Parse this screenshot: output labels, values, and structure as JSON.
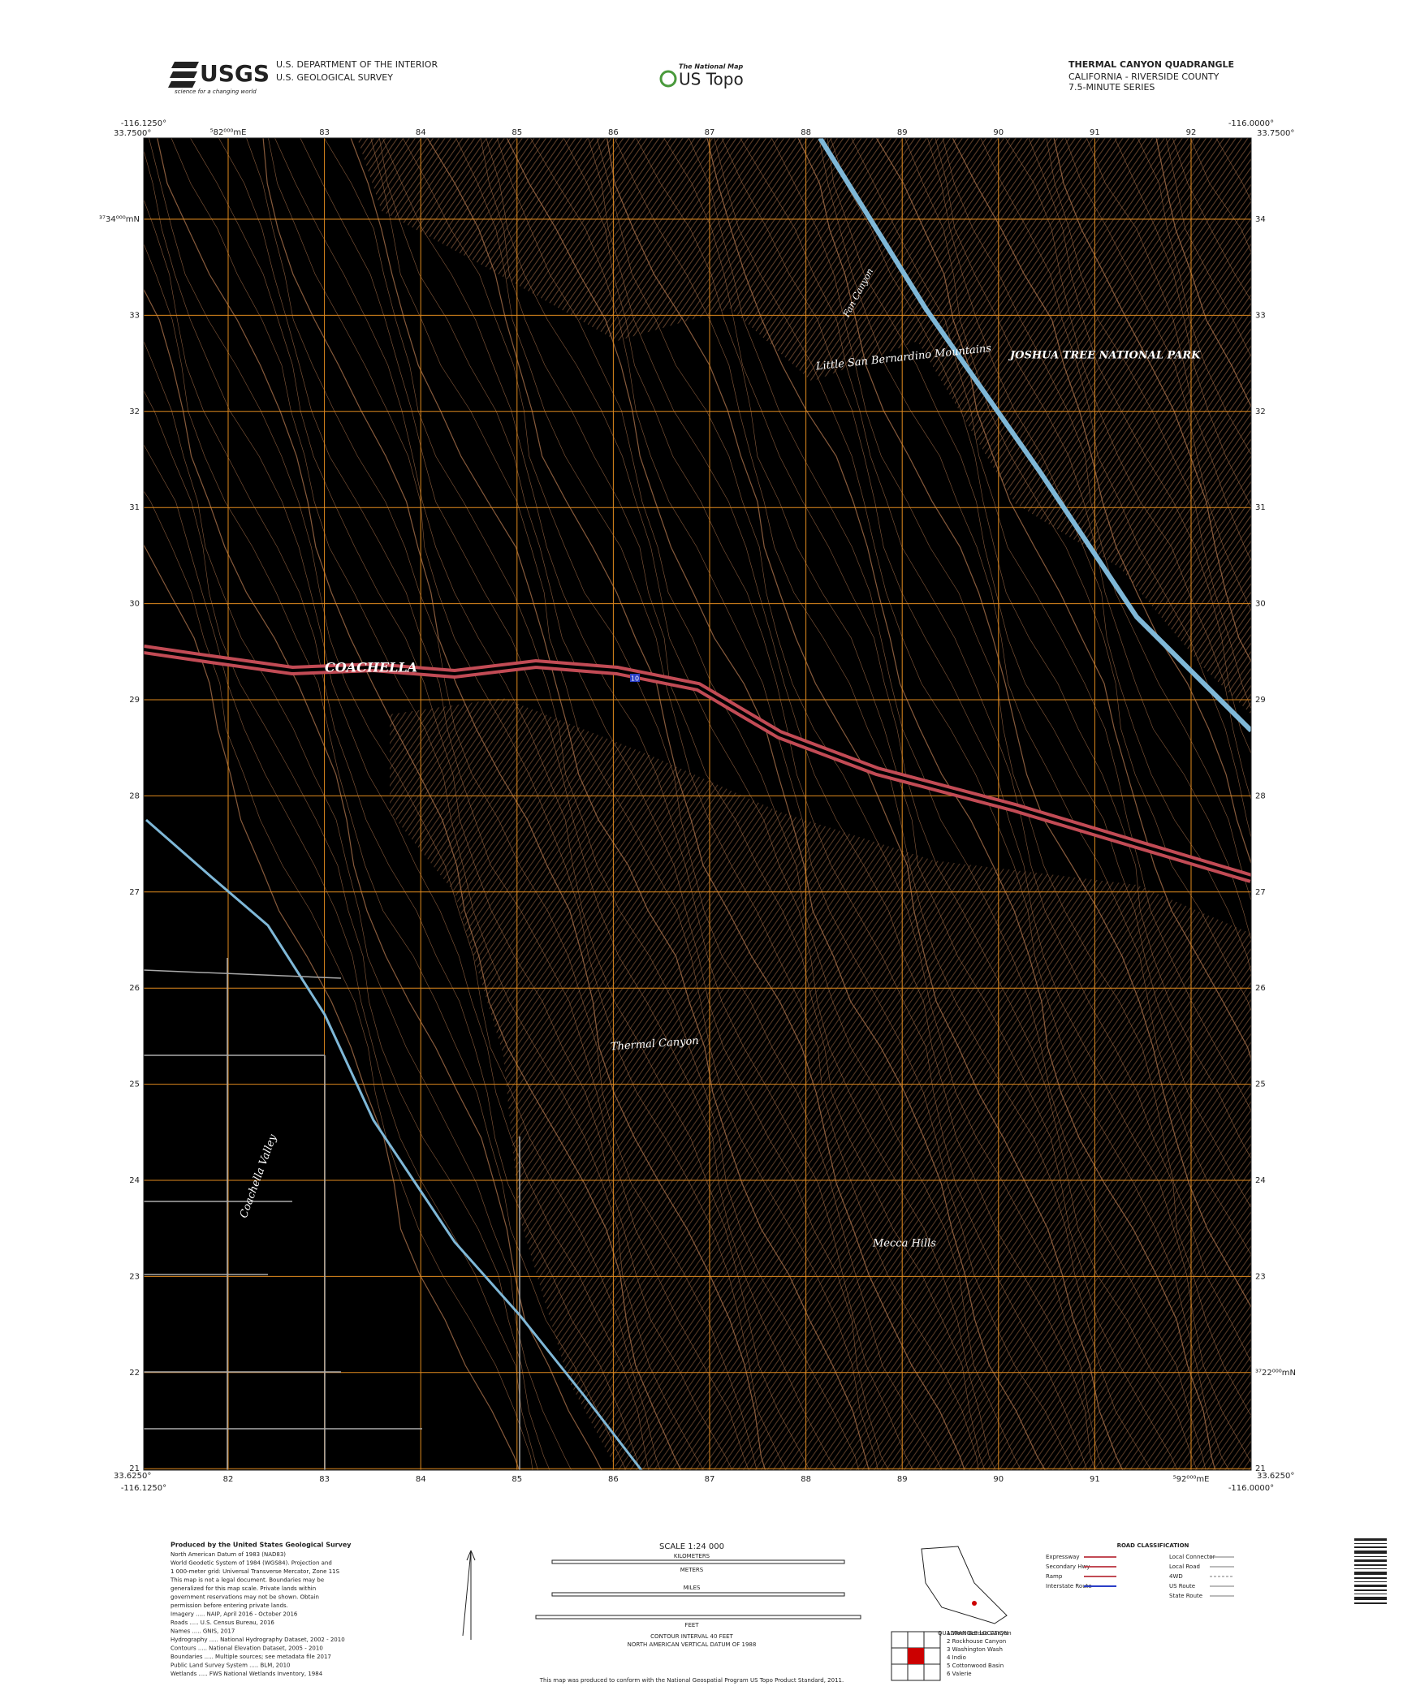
{
  "header": {
    "agency_logo": "USGS",
    "agency_tagline": "science for a changing world",
    "department": "U.S. DEPARTMENT OF THE INTERIOR",
    "survey": "U.S. GEOLOGICAL SURVEY",
    "product_tag": "The National Map",
    "product": "US Topo",
    "title": "THERMAL CANYON QUADRANGLE",
    "state_county": "CALIFORNIA - RIVERSIDE COUNTY",
    "series": "7.5-MINUTE SERIES"
  },
  "corners": {
    "top_left_lon": "-116.1250°",
    "top_left_lat": "33.7500°",
    "top_right_lon": "-116.0000°",
    "top_right_lat": "33.7500°",
    "bottom_left_lat": "33.6250°",
    "bottom_left_lon": "-116.1250°",
    "bottom_right_lon": "-116.0000°",
    "bottom_right_lat": "33.6250°"
  },
  "grid": {
    "top": [
      "⁵82⁰⁰⁰mE",
      "83",
      "84",
      "85",
      "86",
      "87",
      "88",
      "89",
      "90",
      "91",
      "92"
    ],
    "bottom": [
      "82",
      "83",
      "84",
      "85",
      "86",
      "87",
      "88",
      "89",
      "90",
      "91",
      "⁵92⁰⁰⁰mE"
    ],
    "left": [
      "³⁷34⁰⁰⁰mN",
      "33",
      "32",
      "31",
      "30",
      "29",
      "28",
      "27",
      "26",
      "25",
      "24",
      "23",
      "22",
      "21"
    ],
    "right": [
      "34",
      "33",
      "32",
      "31",
      "30",
      "29",
      "28",
      "27",
      "26",
      "25",
      "24",
      "23",
      "³⁷22⁰⁰⁰mN",
      "21"
    ]
  },
  "places": {
    "city": "COACHELLA",
    "park": "JOSHUA TREE NATIONAL PARK",
    "mountains": "Little San Bernardino Mountains",
    "canyon": "Thermal Canyon",
    "hills": "Mecca Hills",
    "valley": "Coachella Valley",
    "wash": "Fan Canyon",
    "route": "10"
  },
  "footer": {
    "producer": "Produced by the United States Geological Survey",
    "credits": [
      "North American Datum of 1983 (NAD83)",
      "World Geodetic System of 1984 (WGS84). Projection and",
      "1 000-meter grid: Universal Transverse Mercator, Zone 11S",
      "This map is not a legal document. Boundaries may be",
      "generalized for this map scale. Private lands within",
      "government reservations may not be shown. Obtain",
      "permission before entering private lands.",
      "Imagery ..... NAIP, April 2016 - October 2016",
      "Roads ..... U.S. Census Bureau, 2016",
      "Names ..... GNIS, 2017",
      "Hydrography ..... National Hydrography Dataset, 2002 - 2010",
      "Contours ..... National Elevation Dataset, 2005 - 2010",
      "Boundaries ..... Multiple sources; see metadata file 2017",
      "Public Land Survey System ..... BLM, 2010",
      "Wetlands ..... FWS National Wetlands Inventory, 1984"
    ],
    "scale": "SCALE 1:24 000",
    "kilometers": "KILOMETERS",
    "meters": "METERS",
    "miles": "MILES",
    "feet": "FEET",
    "contour": "CONTOUR INTERVAL 40 FEET",
    "datum": "NORTH AMERICAN VERTICAL DATUM OF 1988",
    "standard": "This map was produced to conform with the National Geospatial Program US Topo Product Standard, 2011.",
    "road_title": "ROAD CLASSIFICATION",
    "roads": [
      "Expressway",
      "Secondary Hwy",
      "Ramp",
      "Interstate Route"
    ],
    "roads_right": [
      "Local Connector",
      "Local Road",
      "4WD",
      "US Route",
      "State Route"
    ],
    "quads": [
      "1 West Berdoo Canyon",
      "2 Rockhouse Canyon",
      "3 Washington Wash",
      "4 Indio",
      "5 Cottonwood Basin",
      "6 Valerie"
    ],
    "location": "QUADRANGLE LOCATION"
  }
}
